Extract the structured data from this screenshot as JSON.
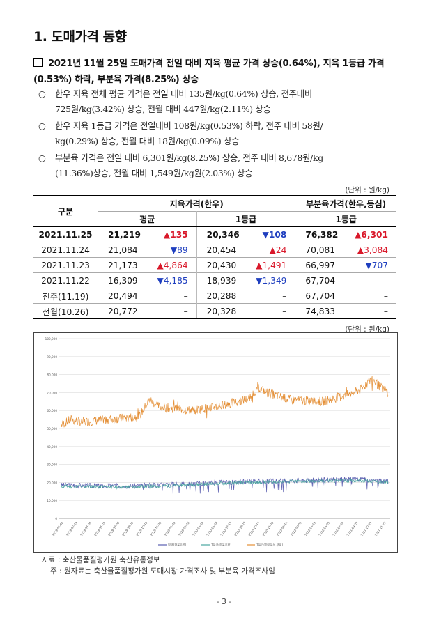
{
  "section_title": "1. 도매가격 동향",
  "headline": "2021년 11월 25일 도매가격 전일 대비 지육 평균 가격 상승(0.64%), 지육 1등급 가격(0.53%) 하락, 부분육 가격(8.25%) 상승",
  "bullets": [
    {
      "mark": "○",
      "line1": "한우 지육 전체 평균 가격은 전일 대비 135원/kg(0.64%) 상승, 전주대비",
      "line2": "725원/kg(3.42%) 상승, 전월 대비 447원/kg(2.11%) 상승"
    },
    {
      "mark": "○",
      "line1": "한우 지육 1등급 가격은 전일대비 108원/kg(0.53%) 하락, 전주 대비 58원/",
      "line2": "kg(0.29%) 상승, 전월 대비 18원/kg(0.09%) 상승"
    },
    {
      "mark": "○",
      "line1": "부분육 가격은 전일 대비 6,301원/kg(8.25%) 상승, 전주 대비 8,678원/kg",
      "line2": "(11.36%)상승, 전월 대비 1,549원/kg원(2.03%) 상승"
    }
  ],
  "unit_label": "(단위 : 원/kg)",
  "table": {
    "h_group": "구분",
    "h_carcass": "지육가격(한우)",
    "h_cuts": "부분육가격(한우,등심)",
    "h_avg": "평균",
    "h_grade1": "1등급",
    "h_grade1b": "1등급",
    "rows": [
      {
        "label": "2021.11.25",
        "avg": "21,219",
        "avg_chg": "▲135",
        "avg_dir": "up",
        "g1": "20,346",
        "g1_chg": "▼108",
        "g1_dir": "dn",
        "cut": "76,382",
        "cut_chg": "▲6,301",
        "cut_dir": "up",
        "bold": true
      },
      {
        "label": "2021.11.24",
        "avg": "21,084",
        "avg_chg": "▼89",
        "avg_dir": "dn",
        "g1": "20,454",
        "g1_chg": "▲24",
        "g1_dir": "up",
        "cut": "70,081",
        "cut_chg": "▲3,084",
        "cut_dir": "up",
        "bold": false
      },
      {
        "label": "2021.11.23",
        "avg": "21,173",
        "avg_chg": "▲4,864",
        "avg_dir": "up",
        "g1": "20,430",
        "g1_chg": "▲1,491",
        "g1_dir": "up",
        "cut": "66,997",
        "cut_chg": "▼707",
        "cut_dir": "dn",
        "bold": false
      },
      {
        "label": "2021.11.22",
        "avg": "16,309",
        "avg_chg": "▼4,185",
        "avg_dir": "dn",
        "g1": "18,939",
        "g1_chg": "▼1,349",
        "g1_dir": "dn",
        "cut": "67,704",
        "cut_chg": "–",
        "cut_dir": "nc",
        "bold": false
      },
      {
        "label": "전주(11.19)",
        "avg": "20,494",
        "avg_chg": "–",
        "avg_dir": "nc",
        "g1": "20,288",
        "g1_chg": "–",
        "g1_dir": "nc",
        "cut": "67,704",
        "cut_chg": "–",
        "cut_dir": "nc",
        "bold": false
      },
      {
        "label": "전월(10.26)",
        "avg": "20,772",
        "avg_chg": "–",
        "avg_dir": "nc",
        "g1": "20,328",
        "g1_chg": "–",
        "g1_dir": "nc",
        "cut": "74,833",
        "cut_chg": "–",
        "cut_dir": "nc",
        "bold": false
      }
    ]
  },
  "chart_data": {
    "type": "line",
    "ylim": [
      0,
      100000
    ],
    "yticks": [
      "0",
      "10,000",
      "20,000",
      "30,000",
      "40,000",
      "50,000",
      "60,000",
      "70,000",
      "80,000",
      "90,000",
      "100,000"
    ],
    "ytick_values": [
      0,
      10000,
      20000,
      30000,
      40000,
      50000,
      60000,
      70000,
      80000,
      90000,
      100000
    ],
    "xticks": [
      "2019-01-02",
      "2019-02-19",
      "2019-04-04",
      "2019-05-22",
      "2019-07-08",
      "2019-08-23",
      "2019-10-10",
      "2019-11-25",
      "2020-01-10",
      "2020-02-26",
      "2020-04-10",
      "2020-05-28",
      "2020-07-13",
      "2020-08-27",
      "2020-10-14",
      "2020-11-30",
      "2021-01-14",
      "2021-03-03",
      "2021-04-19",
      "2021-06-03",
      "2021-07-20",
      "2021-09-03",
      "2021-10-22",
      "2021-11-25"
    ],
    "series": [
      {
        "name": "평균(한육우합)",
        "color": "#5b5fb0",
        "anchors": [
          [
            0,
            18500
          ],
          [
            0.1,
            18200
          ],
          [
            0.2,
            18000
          ],
          [
            0.3,
            18600
          ],
          [
            0.4,
            19200
          ],
          [
            0.5,
            20100
          ],
          [
            0.6,
            20600
          ],
          [
            0.7,
            21000
          ],
          [
            0.8,
            21400
          ],
          [
            0.9,
            21800
          ],
          [
            1,
            20500
          ]
        ],
        "noise": 1400,
        "seed": 3
      },
      {
        "name": "1등급(한육우합)",
        "color": "#4aa6a0",
        "anchors": [
          [
            0,
            17800
          ],
          [
            0.1,
            17600
          ],
          [
            0.2,
            17400
          ],
          [
            0.3,
            18000
          ],
          [
            0.4,
            18700
          ],
          [
            0.5,
            19600
          ],
          [
            0.6,
            20000
          ],
          [
            0.7,
            20500
          ],
          [
            0.8,
            20800
          ],
          [
            0.9,
            21200
          ],
          [
            1,
            20000
          ]
        ],
        "noise": 1000,
        "seed": 11
      },
      {
        "name": "1등급(한우등심,부위)",
        "color": "#e48f36",
        "anchors": [
          [
            0,
            52000
          ],
          [
            0.03,
            55000
          ],
          [
            0.06,
            53500
          ],
          [
            0.2,
            56000
          ],
          [
            0.24,
            57000
          ],
          [
            0.27,
            66000
          ],
          [
            0.3,
            62000
          ],
          [
            0.4,
            60000
          ],
          [
            0.5,
            63000
          ],
          [
            0.58,
            67000
          ],
          [
            0.6,
            73000
          ],
          [
            0.63,
            70000
          ],
          [
            0.7,
            66000
          ],
          [
            0.8,
            65000
          ],
          [
            0.88,
            69000
          ],
          [
            0.92,
            72000
          ],
          [
            0.95,
            78000
          ],
          [
            0.97,
            74000
          ],
          [
            1,
            70000
          ]
        ],
        "noise": 2600,
        "seed": 7
      }
    ]
  },
  "source_lines": [
    "자료 : 축산물품질평가원 축산유통정보",
    "주 : 원자료는 축산물품질평가원 도매시장 가격조사 및 부분육 가격조사임"
  ],
  "page_number": "- 3 -"
}
